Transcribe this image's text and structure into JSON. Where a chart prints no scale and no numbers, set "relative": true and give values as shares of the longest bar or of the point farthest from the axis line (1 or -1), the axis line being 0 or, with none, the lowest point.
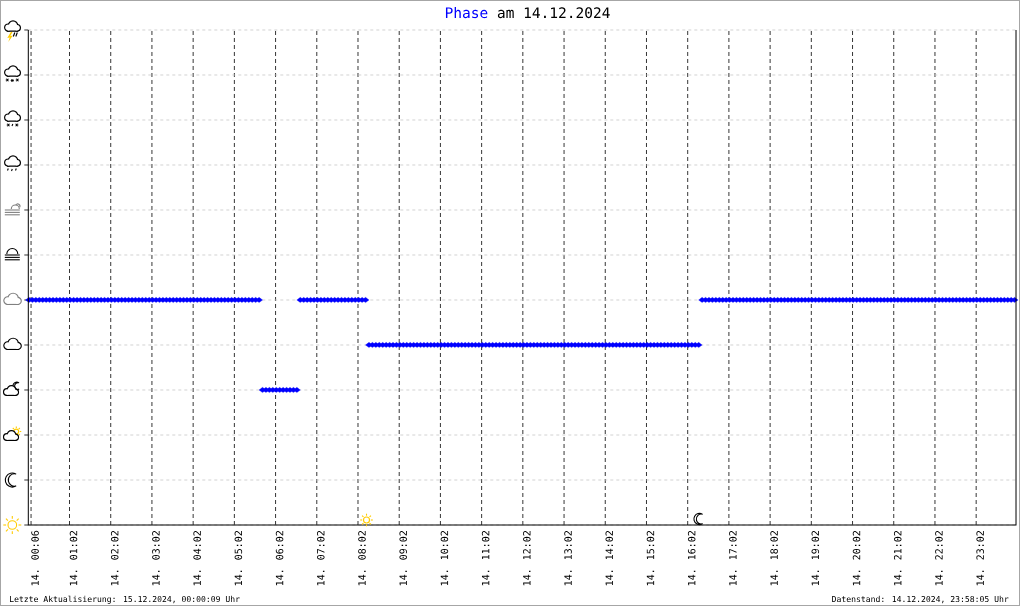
{
  "chart_data": {
    "type": "scatter",
    "title": "am 14.12.2024",
    "relative": true,
    "xlim": [
      "2024-12-14T00:02",
      "2024-12-15T00:00"
    ],
    "xticks": [
      {
        "value": "2024-12-14T00:06",
        "label": "14. 00:06"
      },
      {
        "value": "2024-12-14T01:02",
        "label": "14. 01:02"
      },
      {
        "value": "2024-12-14T02:02",
        "label": "14. 02:02"
      },
      {
        "value": "2024-12-14T03:02",
        "label": "14. 03:02"
      },
      {
        "value": "2024-12-14T04:02",
        "label": "14. 04:02"
      },
      {
        "value": "2024-12-14T05:02",
        "label": "14. 05:02"
      },
      {
        "value": "2024-12-14T06:02",
        "label": "14. 06:02"
      },
      {
        "value": "2024-12-14T07:02",
        "label": "14. 07:02"
      },
      {
        "value": "2024-12-14T08:02",
        "label": "14. 08:02"
      },
      {
        "value": "2024-12-14T09:02",
        "label": "14. 09:02"
      },
      {
        "value": "2024-12-14T10:02",
        "label": "14. 10:02"
      },
      {
        "value": "2024-12-14T11:02",
        "label": "14. 11:02"
      },
      {
        "value": "2024-12-14T12:02",
        "label": "14. 12:02"
      },
      {
        "value": "2024-12-14T13:02",
        "label": "14. 13:02"
      },
      {
        "value": "2024-12-14T14:02",
        "label": "14. 14:02"
      },
      {
        "value": "2024-12-14T15:02",
        "label": "14. 15:02"
      },
      {
        "value": "2024-12-14T16:02",
        "label": "14. 16:02"
      },
      {
        "value": "2024-12-14T17:02",
        "label": "14. 17:02"
      },
      {
        "value": "2024-12-14T18:02",
        "label": "14. 18:02"
      },
      {
        "value": "2024-12-14T19:02",
        "label": "14. 19:02"
      },
      {
        "value": "2024-12-14T20:02",
        "label": "14. 20:02"
      },
      {
        "value": "2024-12-14T21:02",
        "label": "14. 21:02"
      },
      {
        "value": "2024-12-14T22:02",
        "label": "14. 22:02"
      },
      {
        "value": "2024-12-14T23:02",
        "label": "14. 23:02"
      }
    ],
    "grid": true,
    "marker": "diamond",
    "series": [
      {
        "name": "Phase",
        "color": "#0000ff",
        "x": [
          "2024-12-14T00:03",
          "2024-12-14T00:08",
          "2024-12-14T00:13",
          "2024-12-14T00:18",
          "2024-12-14T00:23",
          "2024-12-14T00:28",
          "2024-12-14T00:33",
          "2024-12-14T00:38",
          "2024-12-14T00:43",
          "2024-12-14T00:48",
          "2024-12-14T00:53",
          "2024-12-14T00:58",
          "2024-12-14T01:03",
          "2024-12-14T01:08",
          "2024-12-14T01:13",
          "2024-12-14T01:18",
          "2024-12-14T01:23",
          "2024-12-14T01:28",
          "2024-12-14T01:33",
          "2024-12-14T01:38",
          "2024-12-14T01:43",
          "2024-12-14T01:48",
          "2024-12-14T01:53",
          "2024-12-14T01:58",
          "2024-12-14T02:03",
          "2024-12-14T02:08",
          "2024-12-14T02:13",
          "2024-12-14T02:18",
          "2024-12-14T02:23",
          "2024-12-14T02:28",
          "2024-12-14T02:33",
          "2024-12-14T02:38",
          "2024-12-14T02:43",
          "2024-12-14T02:48",
          "2024-12-14T02:53",
          "2024-12-14T02:58",
          "2024-12-14T03:03",
          "2024-12-14T03:08",
          "2024-12-14T03:13",
          "2024-12-14T03:18",
          "2024-12-14T03:23",
          "2024-12-14T03:28",
          "2024-12-14T03:33",
          "2024-12-14T03:38",
          "2024-12-14T03:43",
          "2024-12-14T03:48",
          "2024-12-14T03:53",
          "2024-12-14T03:58",
          "2024-12-14T04:03",
          "2024-12-14T04:08",
          "2024-12-14T04:13",
          "2024-12-14T04:18",
          "2024-12-14T04:23",
          "2024-12-14T04:28",
          "2024-12-14T04:33",
          "2024-12-14T04:38",
          "2024-12-14T04:43",
          "2024-12-14T04:48",
          "2024-12-14T04:53",
          "2024-12-14T04:58",
          "2024-12-14T05:03",
          "2024-12-14T05:08",
          "2024-12-14T05:13",
          "2024-12-14T05:18",
          "2024-12-14T05:23",
          "2024-12-14T05:28",
          "2024-12-14T05:33",
          "2024-12-14T05:38",
          "2024-12-14T05:43",
          "2024-12-14T05:48",
          "2024-12-14T05:53",
          "2024-12-14T05:58",
          "2024-12-14T06:03",
          "2024-12-14T06:08",
          "2024-12-14T06:13",
          "2024-12-14T06:18",
          "2024-12-14T06:23",
          "2024-12-14T06:28",
          "2024-12-14T06:33",
          "2024-12-14T06:38",
          "2024-12-14T06:43",
          "2024-12-14T06:48",
          "2024-12-14T06:53",
          "2024-12-14T06:58",
          "2024-12-14T07:03",
          "2024-12-14T07:08",
          "2024-12-14T07:13",
          "2024-12-14T07:18",
          "2024-12-14T07:23",
          "2024-12-14T07:28",
          "2024-12-14T07:33",
          "2024-12-14T07:38",
          "2024-12-14T07:43",
          "2024-12-14T07:48",
          "2024-12-14T07:53",
          "2024-12-14T07:58",
          "2024-12-14T08:03",
          "2024-12-14T08:08",
          "2024-12-14T08:13",
          "2024-12-14T08:18",
          "2024-12-14T08:23",
          "2024-12-14T08:28",
          "2024-12-14T08:33",
          "2024-12-14T08:38",
          "2024-12-14T08:43",
          "2024-12-14T08:48",
          "2024-12-14T08:53",
          "2024-12-14T08:58",
          "2024-12-14T09:03",
          "2024-12-14T09:08",
          "2024-12-14T09:13",
          "2024-12-14T09:18",
          "2024-12-14T09:23",
          "2024-12-14T09:28",
          "2024-12-14T09:33",
          "2024-12-14T09:38",
          "2024-12-14T09:43",
          "2024-12-14T09:48",
          "2024-12-14T09:53",
          "2024-12-14T09:58",
          "2024-12-14T10:03",
          "2024-12-14T10:08",
          "2024-12-14T10:13",
          "2024-12-14T10:18",
          "2024-12-14T10:23",
          "2024-12-14T10:28",
          "2024-12-14T10:33",
          "2024-12-14T10:38",
          "2024-12-14T10:43",
          "2024-12-14T10:48",
          "2024-12-14T10:53",
          "2024-12-14T10:58",
          "2024-12-14T11:03",
          "2024-12-14T11:08",
          "2024-12-14T11:13",
          "2024-12-14T11:18",
          "2024-12-14T11:23",
          "2024-12-14T11:28",
          "2024-12-14T11:33",
          "2024-12-14T11:38",
          "2024-12-14T11:43",
          "2024-12-14T11:48",
          "2024-12-14T11:53",
          "2024-12-14T11:58",
          "2024-12-14T12:03",
          "2024-12-14T12:08",
          "2024-12-14T12:13",
          "2024-12-14T12:18",
          "2024-12-14T12:23",
          "2024-12-14T12:28",
          "2024-12-14T12:33",
          "2024-12-14T12:38",
          "2024-12-14T12:43",
          "2024-12-14T12:48",
          "2024-12-14T12:53",
          "2024-12-14T12:58",
          "2024-12-14T13:03",
          "2024-12-14T13:08",
          "2024-12-14T13:13",
          "2024-12-14T13:18",
          "2024-12-14T13:23",
          "2024-12-14T13:28",
          "2024-12-14T13:33",
          "2024-12-14T13:38",
          "2024-12-14T13:43",
          "2024-12-14T13:48",
          "2024-12-14T13:53",
          "2024-12-14T13:58",
          "2024-12-14T14:03",
          "2024-12-14T14:08",
          "2024-12-14T14:13",
          "2024-12-14T14:18",
          "2024-12-14T14:23",
          "2024-12-14T14:28",
          "2024-12-14T14:33",
          "2024-12-14T14:38",
          "2024-12-14T14:43",
          "2024-12-14T14:48",
          "2024-12-14T14:53",
          "2024-12-14T14:58",
          "2024-12-14T15:03",
          "2024-12-14T15:08",
          "2024-12-14T15:13",
          "2024-12-14T15:18",
          "2024-12-14T15:23",
          "2024-12-14T15:28",
          "2024-12-14T15:33",
          "2024-12-14T15:38",
          "2024-12-14T15:43",
          "2024-12-14T15:48",
          "2024-12-14T15:53",
          "2024-12-14T15:58",
          "2024-12-14T16:03",
          "2024-12-14T16:08",
          "2024-12-14T16:13",
          "2024-12-14T16:18",
          "2024-12-14T16:23",
          "2024-12-14T16:28",
          "2024-12-14T16:33",
          "2024-12-14T16:38",
          "2024-12-14T16:43",
          "2024-12-14T16:48",
          "2024-12-14T16:53",
          "2024-12-14T16:58",
          "2024-12-14T17:03",
          "2024-12-14T17:08",
          "2024-12-14T17:13",
          "2024-12-14T17:18",
          "2024-12-14T17:23",
          "2024-12-14T17:28",
          "2024-12-14T17:33",
          "2024-12-14T17:38",
          "2024-12-14T17:43",
          "2024-12-14T17:48",
          "2024-12-14T17:53",
          "2024-12-14T17:58",
          "2024-12-14T18:03",
          "2024-12-14T18:08",
          "2024-12-14T18:13",
          "2024-12-14T18:18",
          "2024-12-14T18:23",
          "2024-12-14T18:28",
          "2024-12-14T18:33",
          "2024-12-14T18:38",
          "2024-12-14T18:43",
          "2024-12-14T18:48",
          "2024-12-14T18:53",
          "2024-12-14T18:58",
          "2024-12-14T19:03",
          "2024-12-14T19:08",
          "2024-12-14T19:13",
          "2024-12-14T19:18",
          "2024-12-14T19:23",
          "2024-12-14T19:28",
          "2024-12-14T19:33",
          "2024-12-14T19:38",
          "2024-12-14T19:43",
          "2024-12-14T19:48",
          "2024-12-14T19:53",
          "2024-12-14T19:58",
          "2024-12-14T20:03",
          "2024-12-14T20:08",
          "2024-12-14T20:13",
          "2024-12-14T20:18",
          "2024-12-14T20:23",
          "2024-12-14T20:28",
          "2024-12-14T20:33",
          "2024-12-14T20:38",
          "2024-12-14T20:43",
          "2024-12-14T20:48",
          "2024-12-14T20:53",
          "2024-12-14T20:58",
          "2024-12-14T21:03",
          "2024-12-14T21:08",
          "2024-12-14T21:13",
          "2024-12-14T21:18",
          "2024-12-14T21:23",
          "2024-12-14T21:28",
          "2024-12-14T21:33",
          "2024-12-14T21:38",
          "2024-12-14T21:43",
          "2024-12-14T21:48",
          "2024-12-14T21:53",
          "2024-12-14T21:58",
          "2024-12-14T22:03",
          "2024-12-14T22:08",
          "2024-12-14T22:13",
          "2024-12-14T22:18",
          "2024-12-14T22:23",
          "2024-12-14T22:28",
          "2024-12-14T22:33",
          "2024-12-14T22:38",
          "2024-12-14T22:43",
          "2024-12-14T22:48",
          "2024-12-14T22:53",
          "2024-12-14T22:58",
          "2024-12-14T23:03",
          "2024-12-14T23:08",
          "2024-12-14T23:13",
          "2024-12-14T23:18",
          "2024-12-14T23:23",
          "2024-12-14T23:28",
          "2024-12-14T23:33",
          "2024-12-14T23:38",
          "2024-12-14T23:43",
          "2024-12-14T23:48",
          "2024-12-14T23:53",
          "2024-12-14T23:58"
        ],
        "values": [
          1,
          1,
          1,
          1,
          1,
          1,
          1,
          1,
          1,
          1,
          1,
          1,
          1,
          1,
          1,
          1,
          1,
          1,
          1,
          1,
          1,
          1,
          1,
          1,
          1,
          1,
          1,
          1,
          1,
          1,
          1,
          1,
          1,
          1,
          1,
          1,
          1,
          1,
          1,
          1,
          1,
          1,
          1,
          1,
          1,
          1,
          1,
          1,
          1,
          1,
          1,
          1,
          1,
          1,
          1,
          1,
          1,
          1,
          1,
          1,
          1,
          1,
          1,
          1,
          1,
          1,
          1,
          1,
          0.6,
          0.6,
          0.6,
          0.6,
          0.6,
          0.6,
          0.6,
          0.6,
          0.6,
          0.6,
          0.6,
          1,
          1,
          1,
          1,
          1,
          1,
          1,
          1,
          1,
          1,
          1,
          1,
          1,
          1,
          1,
          1,
          1,
          1,
          1,
          1,
          0.8,
          0.8,
          0.8,
          0.8,
          0.8,
          0.8,
          0.8,
          0.8,
          0.8,
          0.8,
          0.8,
          0.8,
          0.8,
          0.8,
          0.8,
          0.8,
          0.8,
          0.8,
          0.8,
          0.8,
          0.8,
          0.8,
          0.8,
          0.8,
          0.8,
          0.8,
          0.8,
          0.8,
          0.8,
          0.8,
          0.8,
          0.8,
          0.8,
          0.8,
          0.8,
          0.8,
          0.8,
          0.8,
          0.8,
          0.8,
          0.8,
          0.8,
          0.8,
          0.8,
          0.8,
          0.8,
          0.8,
          0.8,
          0.8,
          0.8,
          0.8,
          0.8,
          0.8,
          0.8,
          0.8,
          0.8,
          0.8,
          0.8,
          0.8,
          0.8,
          0.8,
          0.8,
          0.8,
          0.8,
          0.8,
          0.8,
          0.8,
          0.8,
          0.8,
          0.8,
          0.8,
          0.8,
          0.8,
          0.8,
          0.8,
          0.8,
          0.8,
          0.8,
          0.8,
          0.8,
          0.8,
          0.8,
          0.8,
          0.8,
          0.8,
          0.8,
          0.8,
          0.8,
          0.8,
          0.8,
          0.8,
          0.8,
          0.8,
          0.8,
          0.8,
          0.8,
          0.8,
          1,
          1,
          1,
          1,
          1,
          1,
          1,
          1,
          1,
          1,
          1,
          1,
          1,
          1,
          1,
          1,
          1,
          1,
          1,
          1,
          1,
          1,
          1,
          1,
          1,
          1,
          1,
          1,
          1,
          1,
          1,
          1,
          1,
          1,
          1,
          1,
          1,
          1,
          1,
          1,
          1,
          1,
          1,
          1,
          1,
          1,
          1,
          1,
          1,
          1,
          1,
          1,
          1,
          1,
          1,
          1,
          1,
          1,
          1,
          1,
          1,
          1,
          1,
          1,
          1,
          1,
          1,
          1,
          1,
          1,
          1,
          1,
          1,
          1,
          1,
          1,
          1,
          1,
          1,
          1,
          1,
          1,
          1,
          1,
          1,
          1,
          1,
          1,
          1,
          1,
          1,
          1
        ]
      }
    ],
    "annotations": [
      "Letzte Aktualisierung: 15.12.2024, 00:00:09 Uhr",
      "Datenstand: 14.12.2024, 23:58:05 Uhr"
    ]
  }
}
